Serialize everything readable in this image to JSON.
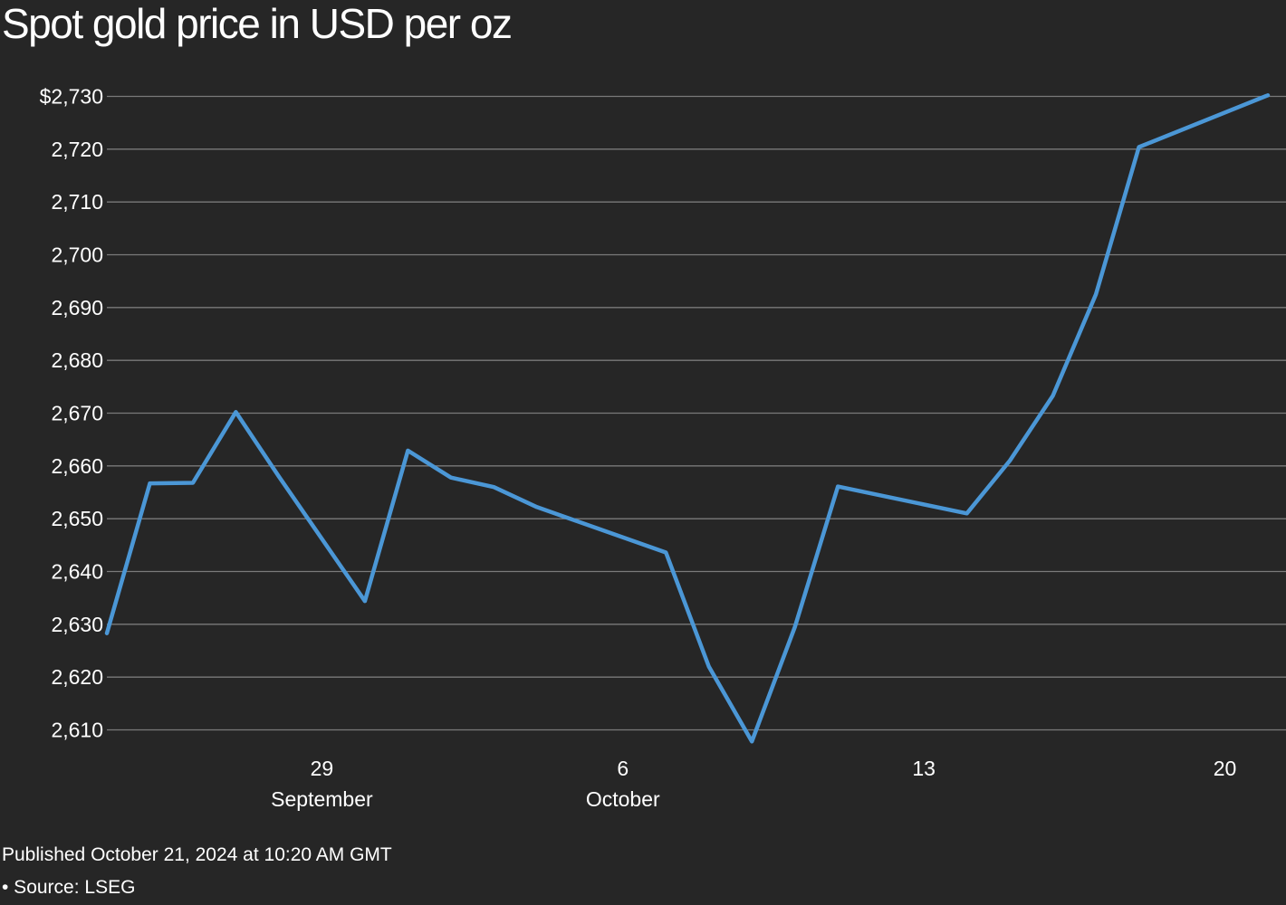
{
  "colors": {
    "background": "#262626",
    "line": "#4b97d6",
    "grid": "#7a7a7a",
    "text": "#ffffff"
  },
  "footer": {
    "published": "Published October 21, 2024 at 10:20 AM GMT",
    "source": "• Source: LSEG"
  },
  "chart_data": {
    "type": "line",
    "title": "Spot gold price in USD per oz",
    "xlabel": "",
    "ylabel": "",
    "grid": true,
    "legend": "none",
    "ylim": [
      2610,
      2730
    ],
    "yticks": [
      2730,
      2720,
      2710,
      2700,
      2690,
      2680,
      2670,
      2660,
      2650,
      2640,
      2630,
      2620,
      2610
    ],
    "ytick_labels": [
      "$2,730",
      "2,720",
      "2,710",
      "2,700",
      "2,690",
      "2,680",
      "2,670",
      "2,660",
      "2,650",
      "2,640",
      "2,630",
      "2,620",
      "2,610"
    ],
    "xlim": [
      "2024-09-24",
      "2024-10-21"
    ],
    "xticks": [
      {
        "date": "2024-09-29",
        "label": "29",
        "sublabel": "September"
      },
      {
        "date": "2024-10-06",
        "label": "6",
        "sublabel": "October"
      },
      {
        "date": "2024-10-13",
        "label": "13",
        "sublabel": ""
      },
      {
        "date": "2024-10-20",
        "label": "20",
        "sublabel": ""
      }
    ],
    "x": [
      "2024-09-24",
      "2024-09-25",
      "2024-09-26",
      "2024-09-27",
      "2024-09-28",
      "2024-09-30",
      "2024-10-01",
      "2024-10-02",
      "2024-10-03",
      "2024-10-04",
      "2024-10-07",
      "2024-10-08",
      "2024-10-09",
      "2024-10-10",
      "2024-10-11",
      "2024-10-14",
      "2024-10-15",
      "2024-10-16",
      "2024-10-17",
      "2024-10-18",
      "2024-10-21"
    ],
    "y": [
      2628.3,
      2656.7,
      2656.8,
      2670.2,
      2658.0,
      2634.4,
      2662.9,
      2657.8,
      2656.0,
      2652.2,
      2643.6,
      2622.0,
      2607.8,
      2629.5,
      2656.1,
      2651.0,
      2661.0,
      2673.3,
      2692.5,
      2720.4,
      2730.2
    ]
  }
}
